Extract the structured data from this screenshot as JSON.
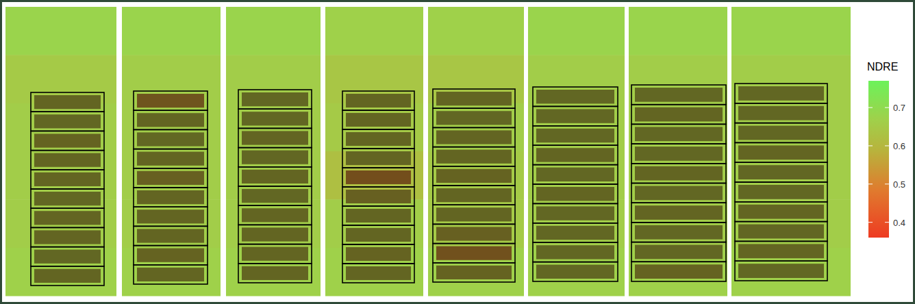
{
  "chart_data": {
    "type": "heatmap",
    "colorbar": {
      "title": "NDRE",
      "range": [
        0.36,
        0.77
      ],
      "ticks": [
        0.4,
        0.5,
        0.6,
        0.7
      ]
    },
    "field": {
      "values": [
        [
          0.68,
          0.68,
          0.68,
          0.67,
          0.67,
          0.68,
          0.68,
          0.68
        ],
        [
          0.65,
          0.66,
          0.66,
          0.64,
          0.64,
          0.66,
          0.66,
          0.66
        ],
        [
          0.66,
          0.66,
          0.66,
          0.65,
          0.66,
          0.66,
          0.66,
          0.66
        ],
        [
          0.66,
          0.66,
          0.66,
          0.62,
          0.65,
          0.66,
          0.66,
          0.66
        ],
        [
          0.66,
          0.66,
          0.66,
          0.66,
          0.65,
          0.66,
          0.66,
          0.66
        ],
        [
          0.67,
          0.67,
          0.67,
          0.67,
          0.67,
          0.67,
          0.67,
          0.67
        ]
      ]
    },
    "blocks": [
      {
        "values": [
          0.6,
          0.61,
          0.59,
          0.6,
          0.6,
          0.61,
          0.6,
          0.6,
          0.61,
          0.6
        ]
      },
      {
        "values": [
          0.54,
          0.6,
          0.61,
          0.6,
          0.58,
          0.6,
          0.6,
          0.6,
          0.59,
          0.6
        ]
      },
      {
        "values": [
          0.61,
          0.61,
          0.6,
          0.61,
          0.6,
          0.61,
          0.6,
          0.6,
          0.6,
          0.6
        ]
      },
      {
        "values": [
          0.6,
          0.6,
          0.6,
          0.6,
          0.52,
          0.58,
          0.6,
          0.6,
          0.59,
          0.6
        ]
      },
      {
        "values": [
          0.6,
          0.61,
          0.6,
          0.6,
          0.59,
          0.6,
          0.6,
          0.58,
          0.53,
          0.59
        ]
      },
      {
        "values": [
          0.61,
          0.61,
          0.61,
          0.6,
          0.61,
          0.6,
          0.61,
          0.61,
          0.61,
          0.61
        ]
      },
      {
        "values": [
          0.61,
          0.6,
          0.61,
          0.61,
          0.6,
          0.61,
          0.6,
          0.61,
          0.61,
          0.59
        ]
      },
      {
        "values": [
          0.61,
          0.61,
          0.61,
          0.6,
          0.61,
          0.61,
          0.6,
          0.61,
          0.6,
          0.61
        ]
      }
    ]
  }
}
